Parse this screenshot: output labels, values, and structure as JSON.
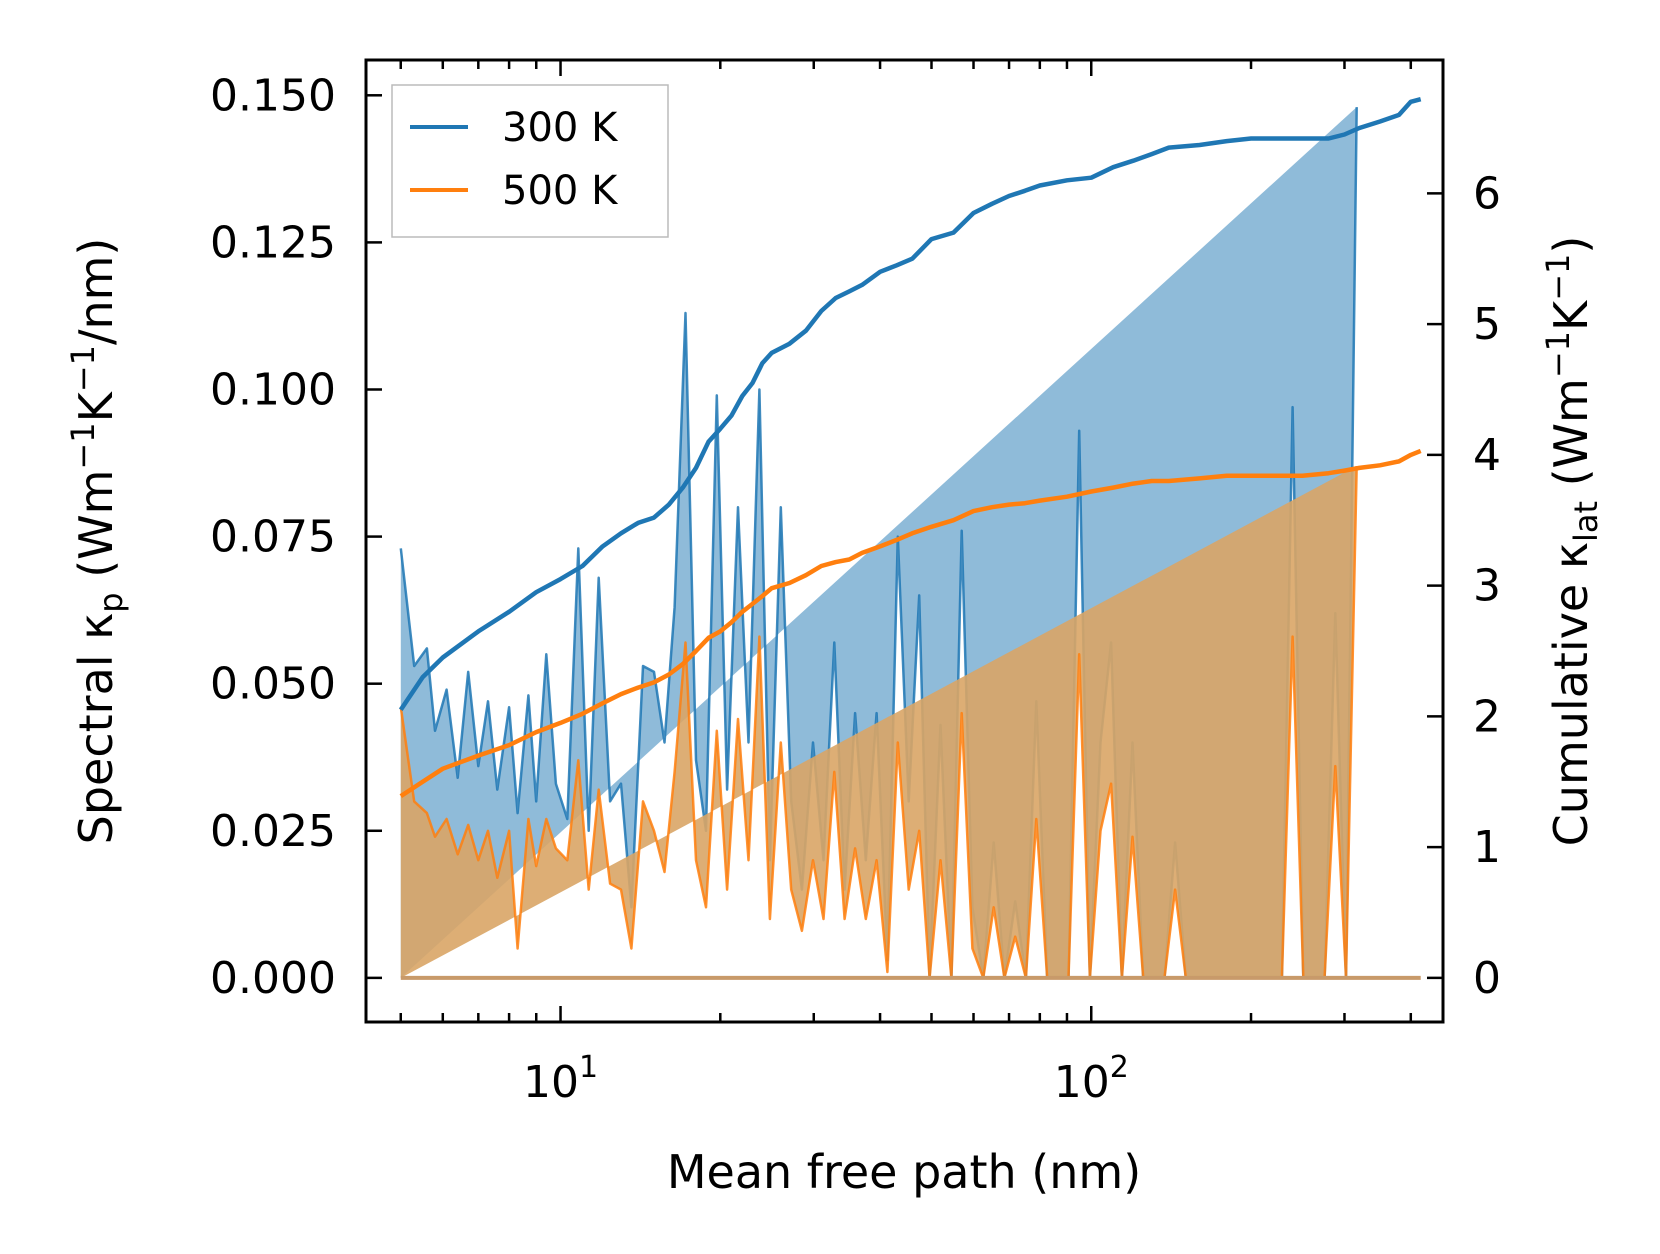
{
  "chart_data": {
    "type": "line",
    "title": "",
    "xlabel": "Mean free path (nm)",
    "xscale": "log",
    "xlim": [
      4.3,
      460
    ],
    "x_ticks": [
      {
        "value": 10,
        "base": "10",
        "exp": "1"
      },
      {
        "value": 100,
        "base": "10",
        "exp": "2"
      }
    ],
    "ylabel_left": {
      "prefix": "Spectral κ",
      "sub": "p",
      "units_a": " (Wm",
      "sup1": "−1",
      "units_b": "K",
      "sup2": "−1",
      "units_c": "/nm)"
    },
    "ylabel_right": {
      "prefix": "Cumulative κ",
      "sub": "lat",
      "units_a": " (Wm",
      "sup1": "−1",
      "units_b": "K",
      "sup2": "−1",
      "units_c": ")"
    },
    "ylim_left": [
      -0.0075,
      0.156
    ],
    "ylim_right": [
      -0.3375,
      7.02
    ],
    "yticks_left": [
      "0.000",
      "0.025",
      "0.050",
      "0.075",
      "0.100",
      "0.125",
      "0.150"
    ],
    "yticks_right": [
      "0",
      "1",
      "2",
      "3",
      "4",
      "5",
      "6"
    ],
    "legend": {
      "location": "top-left",
      "entries": [
        "300 K",
        "500 K"
      ]
    },
    "colors": {
      "s300": "#1f77b4",
      "s500": "#ff7f0e",
      "fill300": "#1f77b4",
      "fill500": "#d9a566"
    },
    "x": [
      5.0,
      5.3,
      5.6,
      5.8,
      6.1,
      6.4,
      6.7,
      7.0,
      7.3,
      7.6,
      8.0,
      8.3,
      8.7,
      9.0,
      9.4,
      9.8,
      10.3,
      10.8,
      11.3,
      11.8,
      12.4,
      13.0,
      13.6,
      14.3,
      15.0,
      15.7,
      16.4,
      17.2,
      18.0,
      18.8,
      19.7,
      20.6,
      21.6,
      22.6,
      23.7,
      24.8,
      26.0,
      27.2,
      28.5,
      29.9,
      31.3,
      32.8,
      34.3,
      35.9,
      37.6,
      39.4,
      41.3,
      43.2,
      45.3,
      47.4,
      49.6,
      52.0,
      54.5,
      57.0,
      59.7,
      62.6,
      65.5,
      68.6,
      71.9,
      75.3,
      78.8,
      82.6,
      86.5,
      90.6,
      94.9,
      99.4,
      104.1,
      109.0,
      114.2,
      119.6,
      125.3,
      131.2,
      137.4,
      143.9,
      150.7,
      157.9,
      165.4,
      173.2,
      181.4,
      190.0,
      199.0,
      208.4,
      218.3,
      228.7,
      239.5,
      250.9,
      262.8,
      275.2,
      288.3,
      302.0,
      316.3,
      331.3,
      347.0,
      363.4,
      380.6,
      398.7,
      417.6
    ],
    "spectral_300": [
      0.073,
      0.053,
      0.056,
      0.042,
      0.049,
      0.034,
      0.052,
      0.036,
      0.047,
      0.032,
      0.046,
      0.028,
      0.048,
      0.03,
      0.055,
      0.033,
      0.027,
      0.073,
      0.025,
      0.068,
      0.03,
      0.033,
      0.012,
      0.053,
      0.052,
      0.04,
      0.063,
      0.113,
      0.037,
      0.025,
      0.099,
      0.032,
      0.08,
      0.04,
      0.1,
      0.02,
      0.08,
      0.03,
      0.015,
      0.04,
      0.02,
      0.057,
      0.015,
      0.045,
      0.02,
      0.045,
      0.003,
      0.075,
      0.03,
      0.065,
      0.0,
      0.043,
      0.0,
      0.076,
      0.012,
      0.0,
      0.023,
      0.0,
      0.013,
      0.0,
      0.047,
      0.0,
      0.0,
      0.0,
      0.093,
      0.0,
      0.04,
      0.057,
      0.0,
      0.04,
      0.0,
      0.0,
      0.0,
      0.023,
      0.0,
      0.0,
      0.0,
      0.0,
      0.0,
      0.0,
      0.0,
      0.0,
      0.0,
      0.0,
      0.097,
      0.0,
      0.0,
      0.0,
      0.062,
      0.0,
      0.148
    ],
    "spectral_500": [
      0.046,
      0.03,
      0.028,
      0.024,
      0.027,
      0.021,
      0.026,
      0.02,
      0.025,
      0.017,
      0.025,
      0.005,
      0.027,
      0.019,
      0.027,
      0.022,
      0.02,
      0.037,
      0.015,
      0.032,
      0.016,
      0.015,
      0.005,
      0.03,
      0.025,
      0.018,
      0.035,
      0.057,
      0.02,
      0.012,
      0.042,
      0.015,
      0.044,
      0.02,
      0.058,
      0.01,
      0.04,
      0.015,
      0.008,
      0.02,
      0.01,
      0.035,
      0.01,
      0.022,
      0.01,
      0.02,
      0.001,
      0.04,
      0.015,
      0.025,
      0.0,
      0.02,
      0.0,
      0.045,
      0.005,
      0.0,
      0.012,
      0.0,
      0.007,
      0.0,
      0.027,
      0.0,
      0.0,
      0.0,
      0.055,
      0.0,
      0.025,
      0.033,
      0.0,
      0.024,
      0.0,
      0.0,
      0.0,
      0.015,
      0.0,
      0.0,
      0.0,
      0.0,
      0.0,
      0.0,
      0.0,
      0.0,
      0.0,
      0.0,
      0.058,
      0.0,
      0.0,
      0.0,
      0.036,
      0.0,
      0.087
    ],
    "cumulative_x": [
      5.0,
      5.5,
      6.0,
      7.0,
      8.0,
      9.0,
      10.0,
      11.0,
      12.0,
      13.0,
      14.0,
      15.0,
      16.0,
      17.0,
      18.0,
      19.0,
      20.0,
      21.0,
      22.0,
      23.0,
      24.0,
      25.0,
      27.0,
      29.0,
      31.0,
      33.0,
      35.0,
      37.0,
      40.0,
      43.0,
      46.0,
      50.0,
      55.0,
      60.0,
      65.0,
      70.0,
      75.0,
      80.0,
      90.0,
      100.0,
      110.0,
      120.0,
      130.0,
      140.0,
      160.0,
      180.0,
      200.0,
      250.0,
      280.0,
      300.0,
      320.0,
      350.0,
      380.0,
      400.0,
      417.6
    ],
    "cumulative_300": [
      2.05,
      2.3,
      2.45,
      2.65,
      2.8,
      2.95,
      3.05,
      3.15,
      3.3,
      3.4,
      3.48,
      3.52,
      3.62,
      3.75,
      3.9,
      4.1,
      4.2,
      4.3,
      4.45,
      4.55,
      4.7,
      4.78,
      4.85,
      4.95,
      5.1,
      5.2,
      5.25,
      5.3,
      5.4,
      5.45,
      5.5,
      5.65,
      5.7,
      5.85,
      5.92,
      5.98,
      6.02,
      6.06,
      6.1,
      6.12,
      6.2,
      6.25,
      6.3,
      6.35,
      6.37,
      6.4,
      6.42,
      6.42,
      6.42,
      6.45,
      6.5,
      6.55,
      6.6,
      6.7,
      6.72
    ],
    "cumulative_500": [
      1.39,
      1.5,
      1.6,
      1.7,
      1.78,
      1.88,
      1.95,
      2.02,
      2.1,
      2.17,
      2.22,
      2.26,
      2.32,
      2.4,
      2.5,
      2.6,
      2.65,
      2.72,
      2.8,
      2.86,
      2.92,
      2.98,
      3.02,
      3.08,
      3.15,
      3.18,
      3.2,
      3.25,
      3.3,
      3.35,
      3.4,
      3.45,
      3.5,
      3.57,
      3.6,
      3.62,
      3.63,
      3.65,
      3.68,
      3.72,
      3.75,
      3.78,
      3.8,
      3.8,
      3.82,
      3.84,
      3.84,
      3.84,
      3.86,
      3.88,
      3.9,
      3.92,
      3.95,
      4.0,
      4.03
    ]
  }
}
